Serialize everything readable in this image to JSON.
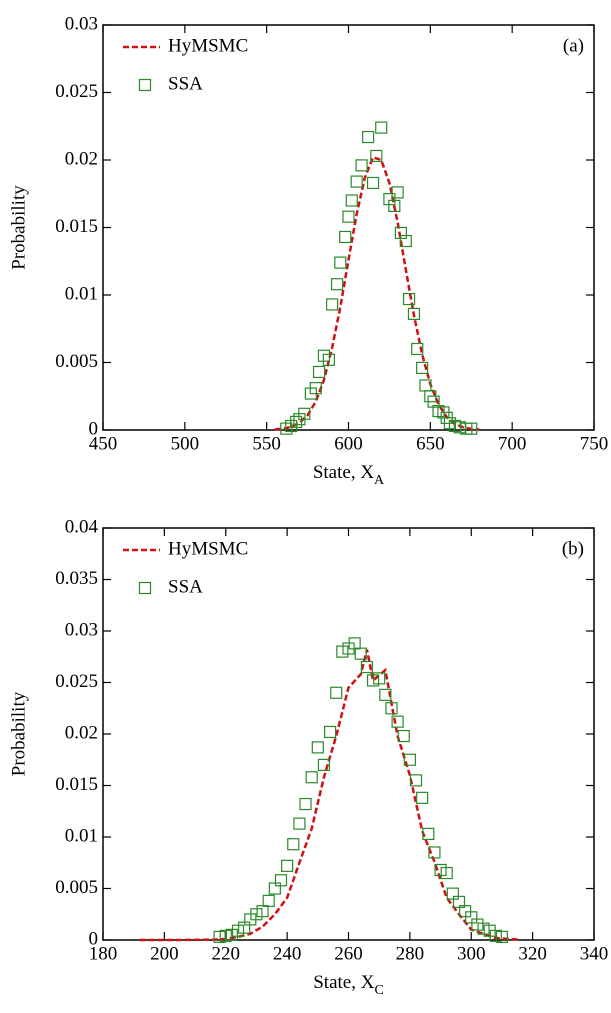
{
  "chart_data": [
    {
      "type": "line",
      "annotation": "(a)",
      "y_label": "Probability",
      "x_label": "State, X",
      "x_label_sub": "A",
      "xlim": [
        450,
        750
      ],
      "xticks": [
        450,
        500,
        550,
        600,
        650,
        700,
        750
      ],
      "ylim": [
        0,
        0.03
      ],
      "yticks": [
        0,
        0.005,
        0.01,
        0.015,
        0.02,
        0.025,
        0.03
      ],
      "series": [
        {
          "name": "HyMSMC",
          "color": "#d01010",
          "style": "dashed",
          "x": [
            555,
            560,
            565,
            570,
            575,
            580,
            585,
            590,
            595,
            600,
            605,
            610,
            615,
            620,
            625,
            630,
            635,
            640,
            645,
            650,
            655,
            660,
            665,
            670,
            675,
            680
          ],
          "values": [
            4e-05,
            0.0001,
            0.00023,
            0.00053,
            0.0011,
            0.0021,
            0.0037,
            0.0061,
            0.0091,
            0.0126,
            0.016,
            0.0187,
            0.0202,
            0.02,
            0.0183,
            0.0154,
            0.0119,
            0.0085,
            0.0056,
            0.0034,
            0.0019,
            0.00096,
            0.00045,
            0.0002,
            8e-05,
            3e-05
          ]
        },
        {
          "name": "SSA",
          "color": "#2a8a2a",
          "style": "squares",
          "x": [
            562,
            565,
            568,
            570,
            573,
            577,
            580,
            582,
            585,
            588,
            590,
            593,
            595,
            598,
            600,
            602,
            605,
            608,
            612,
            615,
            617,
            620,
            625,
            628,
            630,
            632,
            635,
            637,
            640,
            642,
            645,
            647,
            650,
            652,
            655,
            658,
            660,
            662,
            665,
            668,
            672,
            675
          ],
          "values": [
            0.0001,
            0.0003,
            0.0006,
            0.0008,
            0.0012,
            0.0027,
            0.0031,
            0.0043,
            0.0055,
            0.0052,
            0.0093,
            0.0108,
            0.0124,
            0.0143,
            0.0158,
            0.017,
            0.0184,
            0.0196,
            0.0217,
            0.0183,
            0.0203,
            0.0224,
            0.0171,
            0.0166,
            0.0176,
            0.0146,
            0.014,
            0.0097,
            0.0086,
            0.006,
            0.0046,
            0.0033,
            0.0025,
            0.0021,
            0.0014,
            0.0013,
            0.0009,
            0.0005,
            0.0003,
            0.0002,
            0.0001,
            0.0001
          ]
        }
      ]
    },
    {
      "type": "line",
      "annotation": "(b)",
      "y_label": "Probability",
      "x_label": "State, X",
      "x_label_sub": "C",
      "xlim": [
        180,
        340
      ],
      "xticks": [
        180,
        200,
        220,
        240,
        260,
        280,
        300,
        320,
        340
      ],
      "ylim": [
        0,
        0.04
      ],
      "yticks": [
        0,
        0.005,
        0.01,
        0.015,
        0.02,
        0.025,
        0.03,
        0.035,
        0.04
      ],
      "series": [
        {
          "name": "HyMSMC",
          "color": "#d01010",
          "style": "dashed",
          "x": [
            192,
            196,
            200,
            204,
            208,
            212,
            216,
            220,
            224,
            228,
            232,
            236,
            240,
            244,
            248,
            252,
            256,
            260,
            264,
            266,
            268,
            272,
            276,
            280,
            284,
            288,
            292,
            296,
            300,
            304,
            308,
            312,
            316
          ],
          "values": [
            0,
            0,
            0,
            0,
            1e-05,
            2e-05,
            4e-05,
            0.0001,
            0.0003,
            0.0006,
            0.0013,
            0.0025,
            0.0041,
            0.0075,
            0.0108,
            0.0158,
            0.0198,
            0.0245,
            0.0258,
            0.0282,
            0.0252,
            0.0262,
            0.0198,
            0.016,
            0.0106,
            0.0076,
            0.0041,
            0.0025,
            0.001,
            0.0006,
            0.0002,
            0.0001,
            3e-05
          ]
        },
        {
          "name": "SSA",
          "color": "#2a8a2a",
          "style": "squares",
          "x": [
            218,
            220,
            222,
            224,
            226,
            228,
            230,
            232,
            234,
            236,
            238,
            240,
            242,
            244,
            246,
            248,
            250,
            252,
            254,
            256,
            258,
            260,
            262,
            264,
            266,
            268,
            270,
            272,
            274,
            276,
            278,
            280,
            282,
            284,
            286,
            288,
            290,
            292,
            294,
            296,
            298,
            300,
            302,
            304,
            306,
            308,
            310
          ],
          "values": [
            0.0003,
            0.0004,
            0.0005,
            0.0009,
            0.0012,
            0.002,
            0.0025,
            0.0028,
            0.0038,
            0.005,
            0.0058,
            0.0072,
            0.0093,
            0.0113,
            0.0132,
            0.0158,
            0.0187,
            0.017,
            0.0202,
            0.024,
            0.028,
            0.0283,
            0.0288,
            0.0278,
            0.0265,
            0.0252,
            0.0254,
            0.0238,
            0.0225,
            0.0212,
            0.0198,
            0.0175,
            0.0155,
            0.0138,
            0.0103,
            0.0085,
            0.0068,
            0.0065,
            0.0045,
            0.0037,
            0.0028,
            0.0022,
            0.0015,
            0.0011,
            0.0009,
            0.0004,
            0.0003
          ]
        }
      ]
    }
  ]
}
